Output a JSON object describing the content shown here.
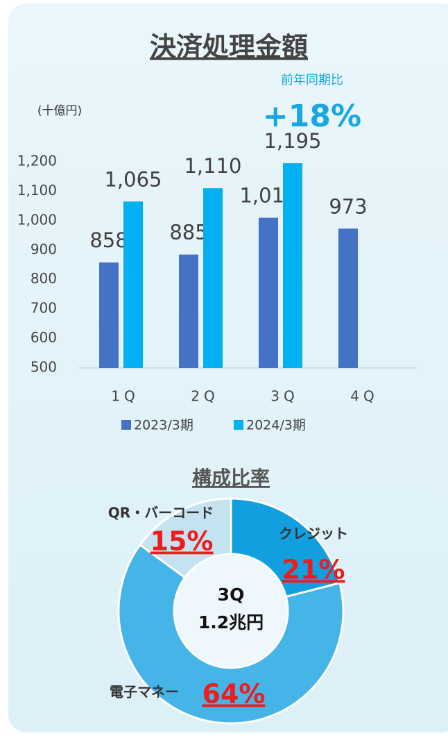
{
  "chart_data": [
    {
      "type": "bar",
      "title": "決済処理金額",
      "subtitle": "前年同期比",
      "annotation": "+18%",
      "y_axis_label": "(十億円)",
      "categories": [
        "1Q",
        "2Q",
        "3Q",
        "4Q"
      ],
      "series": [
        {
          "name": "2023/3期",
          "color": "#4472c4",
          "values": [
            858,
            885,
            1010,
            973
          ],
          "value_labels": [
            "858",
            "885",
            "1,010",
            "973"
          ]
        },
        {
          "name": "2024/3期",
          "color": "#00b0f0",
          "values": [
            1065,
            1110,
            1195,
            null
          ],
          "value_labels": [
            "1,065",
            "1,110",
            "1,195",
            null
          ]
        }
      ],
      "ylim": [
        500,
        1200
      ],
      "yticks": [
        500,
        600,
        700,
        800,
        900,
        {
          "value": 1000,
          "label": "1,000"
        },
        {
          "value": 1100,
          "label": "1,100"
        },
        {
          "value": 1200,
          "label": "1,200"
        }
      ],
      "grid": false,
      "legend": "bottom"
    },
    {
      "type": "donut",
      "title": "構成比率",
      "center_label": [
        "3Q",
        "1.2兆円"
      ],
      "categories": [
        "クレジット",
        "電子マネー",
        "QR・バーコード"
      ],
      "values": [
        21,
        64,
        15
      ],
      "value_labels": [
        "21%",
        "64%",
        "15%"
      ],
      "colors": [
        "#119fe0",
        "#45b4e6",
        "#c4e2ef"
      ]
    }
  ]
}
